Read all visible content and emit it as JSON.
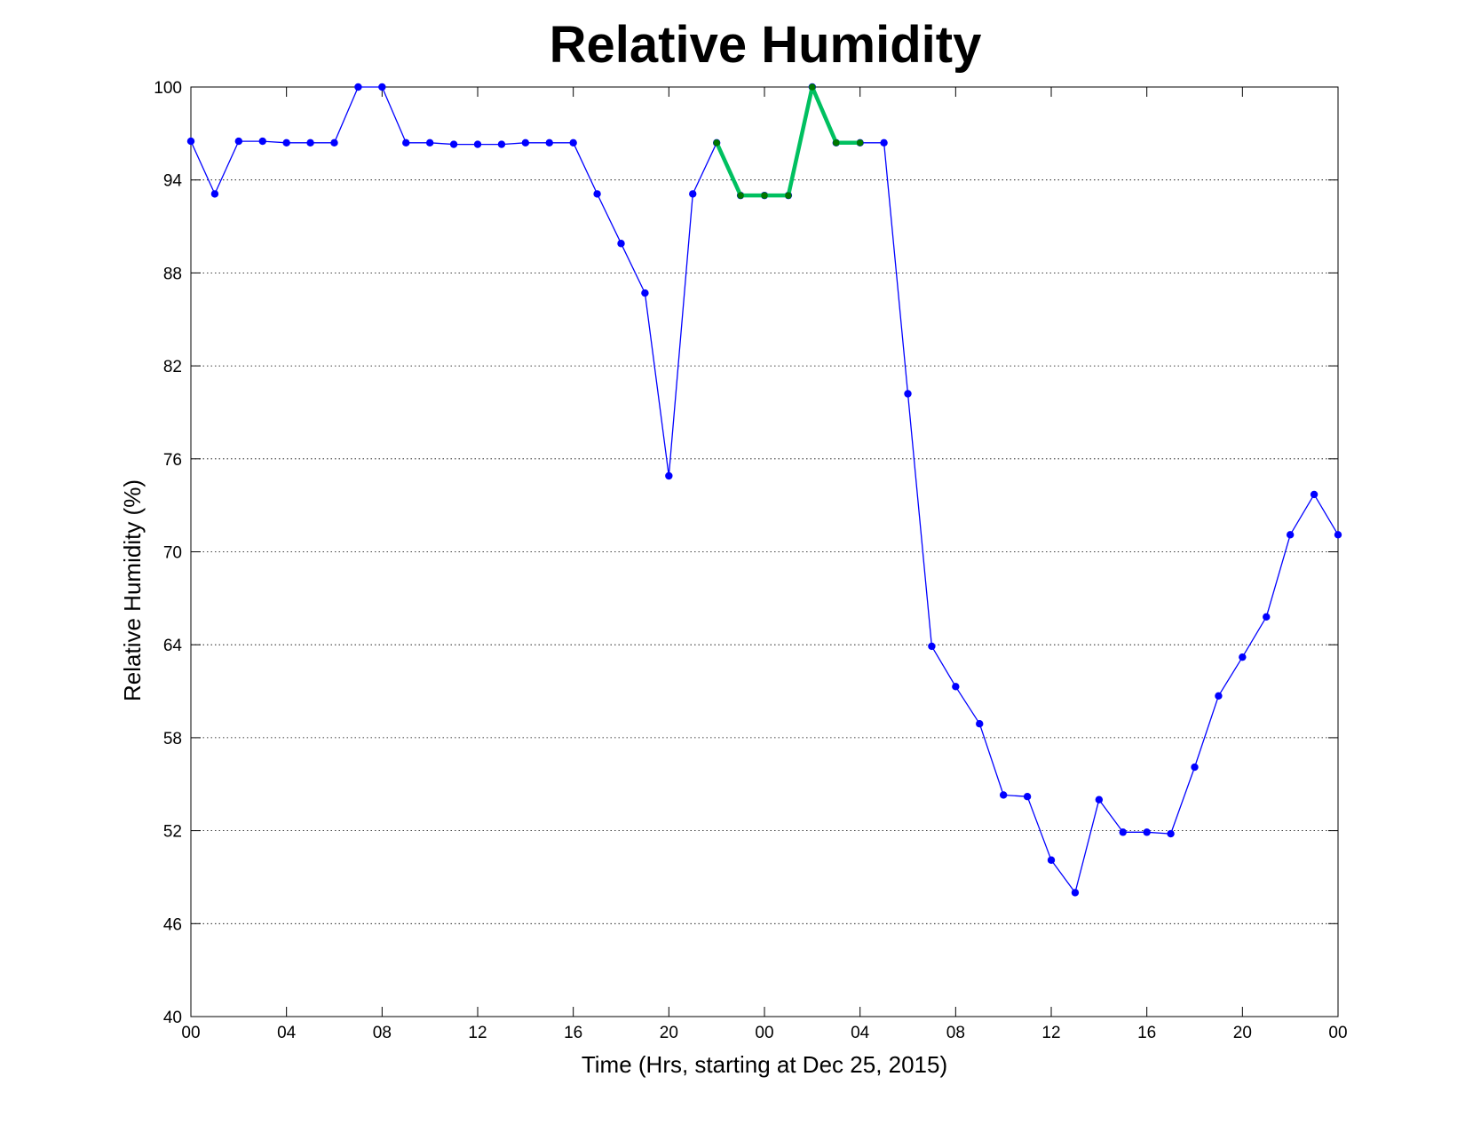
{
  "chart_data": {
    "type": "line",
    "title": "Relative Humidity",
    "xlabel": "Time (Hrs, starting at Dec 25, 2015)",
    "ylabel": "Relative Humidity (%)",
    "xlim": [
      0,
      48
    ],
    "ylim": [
      40,
      100
    ],
    "x_ticks": [
      {
        "x": 0,
        "label": "00"
      },
      {
        "x": 4,
        "label": "04"
      },
      {
        "x": 8,
        "label": "08"
      },
      {
        "x": 12,
        "label": "12"
      },
      {
        "x": 16,
        "label": "16"
      },
      {
        "x": 20,
        "label": "20"
      },
      {
        "x": 24,
        "label": "00"
      },
      {
        "x": 28,
        "label": "04"
      },
      {
        "x": 32,
        "label": "08"
      },
      {
        "x": 36,
        "label": "12"
      },
      {
        "x": 40,
        "label": "16"
      },
      {
        "x": 44,
        "label": "20"
      },
      {
        "x": 48,
        "label": "00"
      }
    ],
    "y_ticks": [
      40,
      46,
      52,
      58,
      64,
      70,
      76,
      82,
      88,
      94,
      100
    ],
    "grid": "y-dotted",
    "series": [
      {
        "color": "#0000ff",
        "x": [
          0,
          1,
          2,
          3,
          4,
          5,
          6,
          7,
          8,
          9,
          10,
          11,
          12,
          13,
          14,
          15,
          16,
          17,
          18,
          19,
          20,
          21,
          22,
          23,
          24,
          25,
          26,
          27,
          28,
          29,
          30,
          31,
          32,
          33,
          34,
          35,
          36,
          37,
          38,
          39,
          40,
          41,
          42,
          43,
          44,
          45,
          46,
          47,
          48
        ],
        "y": [
          96.5,
          93.1,
          96.5,
          96.5,
          96.4,
          96.4,
          96.4,
          100,
          100,
          96.4,
          96.4,
          96.3,
          96.3,
          96.3,
          96.4,
          96.4,
          96.4,
          93.1,
          89.9,
          86.7,
          74.9,
          93.1,
          96.4,
          93,
          93,
          93,
          100,
          96.4,
          96.4,
          96.4,
          80.2,
          63.9,
          61.3,
          58.9,
          54.3,
          54.2,
          50.1,
          48,
          54,
          51.9,
          51.9,
          51.8,
          56.1,
          60.7,
          63.2,
          65.8,
          71.1,
          73.7,
          71.1
        ]
      },
      {
        "color": "#00c060",
        "marker_color": "#007700",
        "x": [
          22,
          23,
          24,
          25,
          26,
          27,
          28
        ],
        "y": [
          96.4,
          93,
          93,
          93,
          100,
          96.4,
          96.4
        ]
      }
    ]
  }
}
